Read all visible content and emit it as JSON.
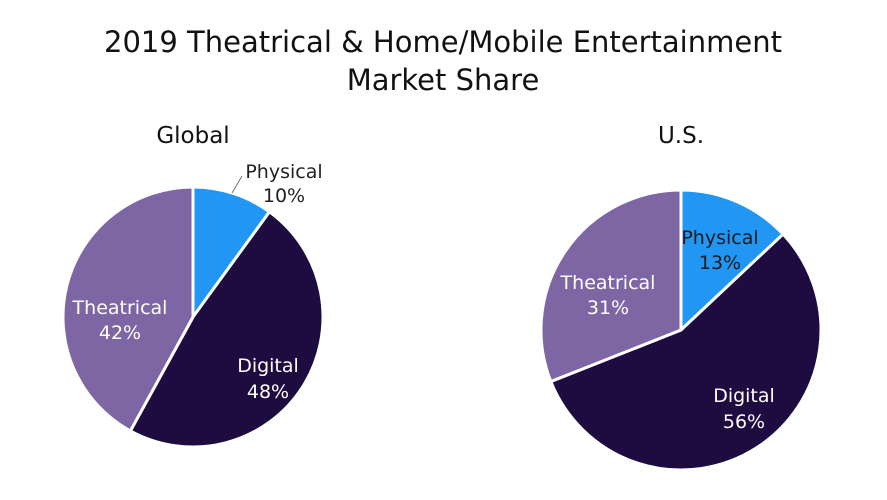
{
  "title": {
    "line1": "2019 Theatrical & Home/Mobile Entertainment",
    "line2": "Market Share"
  },
  "chart_data": [
    {
      "type": "pie",
      "title": "Global",
      "slices": [
        {
          "label": "Physical",
          "value": 10,
          "display": "10%",
          "color": "#2196F3"
        },
        {
          "label": "Digital",
          "value": 48,
          "display": "48%",
          "color": "#1E0B3F"
        },
        {
          "label": "Theatrical",
          "value": 42,
          "display": "42%",
          "color": "#7E66A4"
        }
      ]
    },
    {
      "type": "pie",
      "title": "U.S.",
      "slices": [
        {
          "label": "Physical",
          "value": 13,
          "display": "13%",
          "color": "#2196F3"
        },
        {
          "label": "Digital",
          "value": 56,
          "display": "56%",
          "color": "#1E0B3F"
        },
        {
          "label": "Theatrical",
          "value": 31,
          "display": "31%",
          "color": "#7E66A4"
        }
      ]
    }
  ]
}
